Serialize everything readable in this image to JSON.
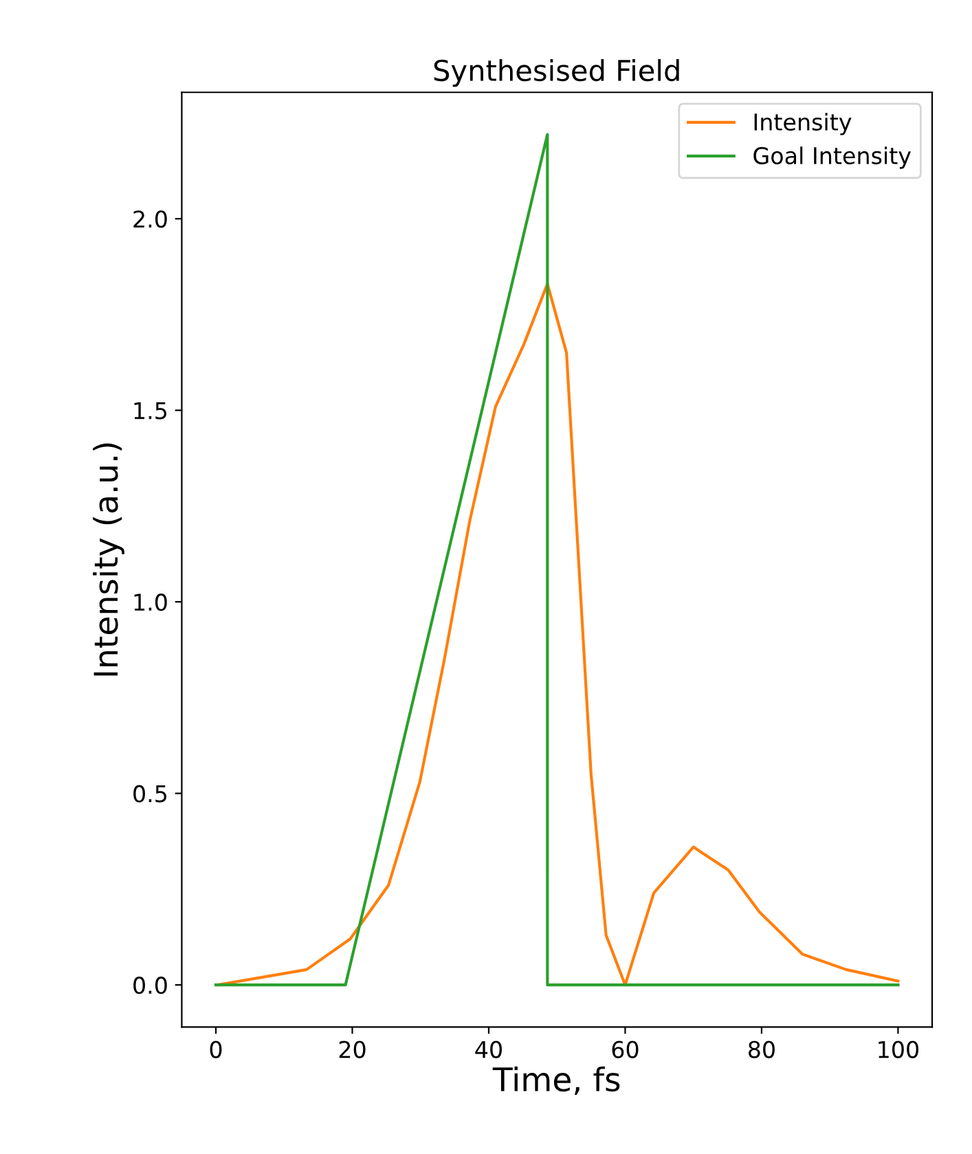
{
  "chart_data": {
    "type": "line",
    "title": "Synthesised Field",
    "xlabel": "Time, fs",
    "ylabel": "Intensity (a.u.)",
    "series": [
      {
        "name": "Intensity",
        "color": "#ff7f0e",
        "x": [
          0.3,
          13.3,
          19.7,
          25.3,
          29.9,
          33.5,
          37.2,
          41,
          45.1,
          48.6,
          51.4,
          53.2,
          55,
          57.2,
          60,
          64.2,
          70,
          75.1,
          79.7,
          86,
          92.4,
          100
        ],
        "values": [
          0,
          0.04,
          0.12,
          0.26,
          0.53,
          0.85,
          1.21,
          1.51,
          1.67,
          1.83,
          1.65,
          1.1,
          0.55,
          0.13,
          0,
          0.24,
          0.36,
          0.3,
          0.19,
          0.08,
          0.04,
          0.01
        ]
      },
      {
        "name": "Goal Intensity",
        "color": "#2ca02c",
        "x": [
          0,
          19,
          48.6,
          48.6,
          100
        ],
        "values": [
          0,
          0,
          2.22,
          0,
          0
        ]
      }
    ],
    "xlim": [
      -5,
      105
    ],
    "ylim": [
      -0.11,
      2.33
    ],
    "xticks": [
      0,
      20,
      40,
      60,
      80,
      100
    ],
    "yticks": [
      {
        "value": 0,
        "label": "0.0"
      },
      {
        "value": 0.5,
        "label": "0.5"
      },
      {
        "value": 1,
        "label": "1.0"
      },
      {
        "value": 1.5,
        "label": "1.5"
      },
      {
        "value": 2,
        "label": "2.0"
      }
    ],
    "legend": "top right",
    "grid": false
  }
}
